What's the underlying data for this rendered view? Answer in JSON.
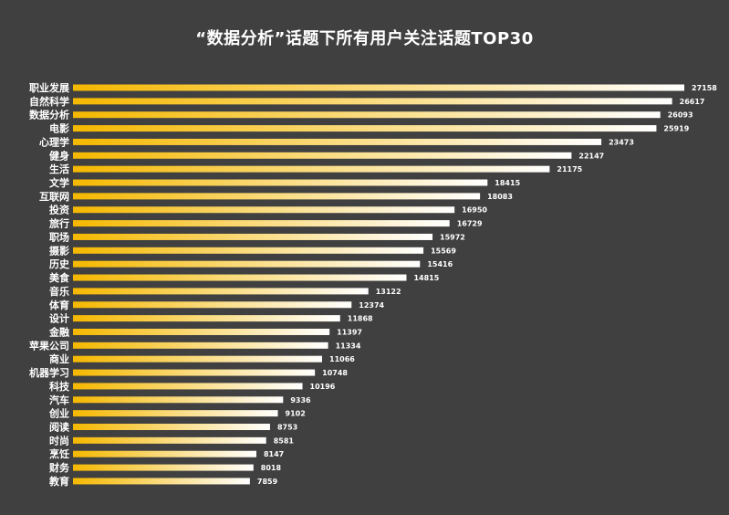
{
  "colors": {
    "background": "#404040",
    "bar_start": "#f5b800",
    "bar_end": "#ffffff",
    "text": "#ffffff"
  },
  "chart_data": {
    "type": "bar",
    "orientation": "horizontal",
    "title": "“数据分析”话题下所有用户关注话题TOP30",
    "xlabel": "",
    "ylabel": "",
    "grid": false,
    "categories": [
      "职业发展",
      "自然科学",
      "数据分析",
      "电影",
      "心理学",
      "健身",
      "生活",
      "文学",
      "互联网",
      "投资",
      "旅行",
      "职场",
      "摄影",
      "历史",
      "美食",
      "音乐",
      "体育",
      "设计",
      "金融",
      "苹果公司",
      "商业",
      "机器学习",
      "科技",
      "汽车",
      "创业",
      "阅读",
      "时尚",
      "烹饪",
      "财务",
      "教育"
    ],
    "values": [
      27158,
      26617,
      26093,
      25919,
      23473,
      22147,
      21175,
      18415,
      18083,
      16950,
      16729,
      15972,
      15569,
      15416,
      14815,
      13122,
      12374,
      11868,
      11397,
      11334,
      11066,
      10748,
      10196,
      9336,
      9102,
      8753,
      8581,
      8147,
      8018,
      7859
    ]
  }
}
